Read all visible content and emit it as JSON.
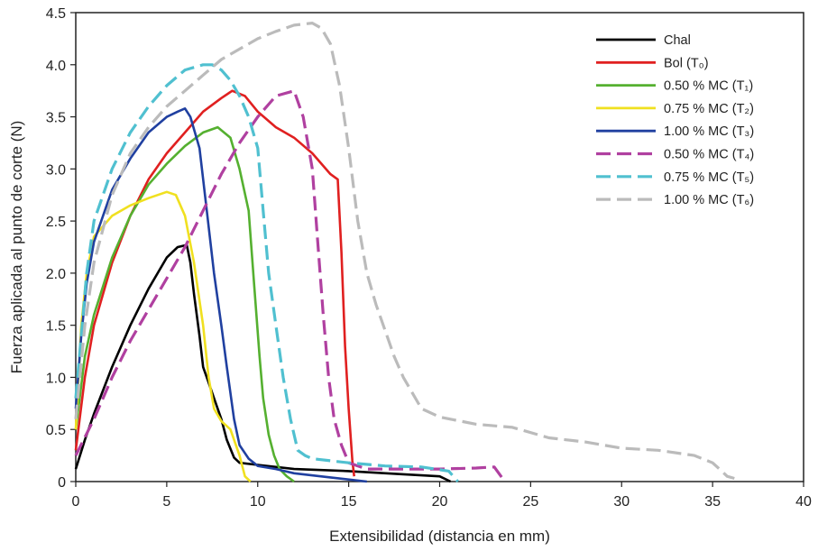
{
  "chart_data": {
    "type": "line",
    "title": "",
    "xlabel": "Extensibilidad (distancia en mm)",
    "ylabel": "Fuerza aplicada al punto de corte (N)",
    "xlim": [
      0,
      40
    ],
    "ylim": [
      0,
      4.5
    ],
    "xticks": [
      0,
      5,
      10,
      15,
      20,
      25,
      30,
      35,
      40
    ],
    "yticks": [
      "0",
      "0.5",
      "1.0",
      "1.5",
      "2.0",
      "2.5",
      "3.0",
      "3.5",
      "4.0",
      "4.5"
    ],
    "legend_position": "top-right",
    "series": [
      {
        "name": "Chal",
        "color": "#000000",
        "dash": "solid",
        "x": [
          0,
          0.5,
          1,
          2,
          3,
          4,
          5,
          5.6,
          6.1,
          6.3,
          6.5,
          6.8,
          7,
          7.3,
          7.6,
          8,
          8.3,
          8.7,
          9,
          10,
          12,
          15,
          18,
          20,
          20.6
        ],
        "y": [
          0.12,
          0.4,
          0.65,
          1.1,
          1.5,
          1.85,
          2.15,
          2.25,
          2.27,
          2.1,
          1.8,
          1.4,
          1.1,
          0.95,
          0.8,
          0.6,
          0.4,
          0.23,
          0.18,
          0.16,
          0.12,
          0.1,
          0.07,
          0.05,
          0.0
        ]
      },
      {
        "name": "Bol (T0)",
        "color": "#e02020",
        "dash": "solid",
        "x": [
          0,
          0.5,
          1,
          2,
          3,
          4,
          5,
          6,
          7,
          8,
          8.6,
          9.3,
          10,
          11,
          12,
          13,
          14,
          14.4,
          14.6,
          14.8,
          15.0,
          15.2,
          15.3
        ],
        "y": [
          0.3,
          1.0,
          1.5,
          2.1,
          2.55,
          2.9,
          3.15,
          3.35,
          3.55,
          3.68,
          3.75,
          3.7,
          3.55,
          3.4,
          3.3,
          3.15,
          2.95,
          2.9,
          2.2,
          1.3,
          0.7,
          0.2,
          0.05
        ]
      },
      {
        "name": "0.50 % MC (T1)",
        "color": "#55b030",
        "dash": "solid",
        "x": [
          0,
          0.5,
          1,
          2,
          3,
          4,
          5,
          6,
          7,
          7.8,
          8.5,
          9,
          9.5,
          9.8,
          10.1,
          10.3,
          10.6,
          10.9,
          11.2,
          11.6,
          12
        ],
        "y": [
          0.5,
          1.2,
          1.6,
          2.15,
          2.55,
          2.85,
          3.05,
          3.22,
          3.35,
          3.4,
          3.3,
          3.0,
          2.6,
          1.9,
          1.2,
          0.8,
          0.45,
          0.25,
          0.12,
          0.05,
          0.0
        ]
      },
      {
        "name": "0.75 % MC (T2)",
        "color": "#f0e020",
        "dash": "solid",
        "x": [
          0,
          0.3,
          0.6,
          1,
          2,
          3,
          4,
          5,
          5.5,
          6,
          6.5,
          7,
          7.3,
          7.6,
          8,
          8.5,
          9,
          9.3,
          9.6
        ],
        "y": [
          0.5,
          1.5,
          2.0,
          2.35,
          2.55,
          2.65,
          2.72,
          2.78,
          2.75,
          2.55,
          2.1,
          1.5,
          1.0,
          0.7,
          0.58,
          0.5,
          0.25,
          0.05,
          0.0
        ]
      },
      {
        "name": "1.00 % MC (T3)",
        "color": "#2040a0",
        "dash": "solid",
        "x": [
          0,
          0.3,
          0.6,
          1,
          2,
          3,
          4,
          5,
          5.6,
          6,
          6.3,
          6.8,
          7.2,
          7.6,
          8,
          8.3,
          8.7,
          9,
          9.5,
          10,
          11,
          12,
          14,
          16
        ],
        "y": [
          0.7,
          1.4,
          1.9,
          2.3,
          2.8,
          3.1,
          3.35,
          3.5,
          3.55,
          3.58,
          3.5,
          3.2,
          2.6,
          2.0,
          1.5,
          1.1,
          0.6,
          0.35,
          0.22,
          0.15,
          0.12,
          0.08,
          0.04,
          0.0
        ]
      },
      {
        "name": "0.50 % MC (T4)",
        "color": "#b040a0",
        "dash": "dashed",
        "x": [
          0,
          1,
          2,
          3,
          4,
          5,
          6,
          7,
          8,
          9,
          10,
          11,
          12,
          12.5,
          13,
          13.3,
          13.6,
          13.9,
          14.2,
          14.6,
          15,
          16,
          18,
          20,
          22,
          23,
          23.5
        ],
        "y": [
          0.25,
          0.6,
          1.0,
          1.35,
          1.65,
          1.95,
          2.25,
          2.6,
          2.95,
          3.25,
          3.5,
          3.7,
          3.75,
          3.5,
          3.0,
          2.3,
          1.6,
          1.0,
          0.6,
          0.35,
          0.18,
          0.12,
          0.12,
          0.12,
          0.13,
          0.14,
          0.02
        ]
      },
      {
        "name": "0.75 % MC (T5)",
        "color": "#50c0d0",
        "dash": "dashed",
        "x": [
          0,
          0.3,
          0.6,
          1,
          2,
          3,
          4,
          5,
          6,
          7,
          7.5,
          8,
          8.5,
          9,
          9.5,
          10,
          10.3,
          10.6,
          11,
          11.4,
          11.8,
          12.2,
          12.6,
          13,
          14,
          15,
          17,
          19,
          20.5,
          21
        ],
        "y": [
          0.8,
          1.4,
          2.0,
          2.5,
          3.0,
          3.35,
          3.6,
          3.8,
          3.95,
          4.0,
          4.0,
          3.95,
          3.85,
          3.7,
          3.5,
          3.2,
          2.6,
          2.0,
          1.5,
          1.0,
          0.6,
          0.3,
          0.25,
          0.22,
          0.2,
          0.18,
          0.15,
          0.14,
          0.1,
          0.0
        ]
      },
      {
        "name": "1.00 % MC (T6)",
        "color": "#bbbbbb",
        "dash": "dashed",
        "x": [
          0,
          0.5,
          1,
          2,
          3,
          4,
          5,
          6,
          7,
          8,
          9,
          10,
          11,
          12,
          13,
          13.5,
          14,
          14.5,
          15,
          15.5,
          16,
          16.5,
          17,
          17.5,
          18,
          19,
          20,
          22,
          24,
          26,
          28,
          30,
          32,
          34,
          35,
          35.5,
          35.8,
          36.2
        ],
        "y": [
          0.6,
          1.5,
          2.1,
          2.75,
          3.15,
          3.4,
          3.6,
          3.75,
          3.9,
          4.05,
          4.15,
          4.25,
          4.32,
          4.38,
          4.4,
          4.35,
          4.2,
          3.8,
          3.2,
          2.5,
          2.0,
          1.7,
          1.45,
          1.2,
          1.0,
          0.7,
          0.62,
          0.55,
          0.52,
          0.42,
          0.38,
          0.32,
          0.3,
          0.25,
          0.18,
          0.1,
          0.05,
          0.03
        ]
      }
    ]
  }
}
